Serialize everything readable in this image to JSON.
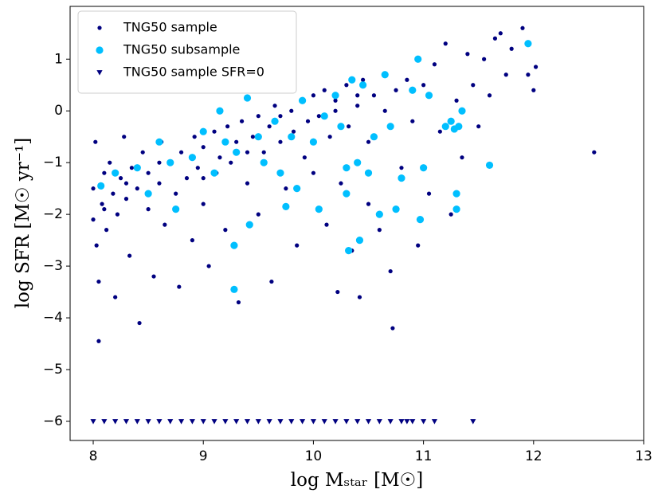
{
  "chart_data": {
    "type": "scatter",
    "xlabel": "log Mₛₜₐᵣ [M☉]",
    "ylabel": "log SFR [M☉ yr⁻¹]",
    "xlim": [
      7.79,
      13.0
    ],
    "ylim": [
      -6.37,
      2.02
    ],
    "xticks": [
      8,
      9,
      10,
      11,
      12,
      13
    ],
    "yticks": [
      {
        "value": -6,
        "label": "−6"
      },
      {
        "value": -5,
        "label": "−5"
      },
      {
        "value": -4,
        "label": "−4"
      },
      {
        "value": -3,
        "label": "−3"
      },
      {
        "value": -2,
        "label": "−2"
      },
      {
        "value": -1,
        "label": "−1"
      },
      0,
      1
    ],
    "legend": "upper left",
    "series": [
      {
        "name": "TNG50 sample",
        "color": "#000080",
        "marker": "circle",
        "x": [
          8.0,
          8.0,
          8.02,
          8.03,
          8.05,
          8.05,
          8.08,
          8.1,
          8.12,
          8.15,
          8.18,
          8.2,
          8.22,
          8.25,
          8.28,
          8.3,
          8.33,
          8.35,
          8.4,
          8.42,
          8.45,
          8.5,
          8.5,
          8.55,
          8.6,
          8.62,
          8.65,
          8.7,
          8.75,
          8.78,
          8.8,
          8.85,
          8.9,
          8.92,
          8.95,
          9.0,
          9.0,
          9.05,
          9.1,
          9.12,
          9.15,
          9.2,
          9.22,
          9.25,
          9.3,
          9.32,
          9.35,
          9.4,
          9.45,
          9.5,
          9.5,
          9.55,
          9.6,
          9.62,
          9.65,
          9.7,
          9.75,
          9.8,
          9.82,
          9.85,
          9.9,
          9.92,
          9.95,
          10.0,
          10.0,
          10.05,
          10.1,
          10.12,
          10.15,
          10.2,
          10.22,
          10.25,
          10.3,
          10.32,
          10.35,
          10.4,
          10.42,
          10.45,
          10.5,
          10.5,
          10.55,
          10.6,
          10.65,
          10.7,
          10.72,
          10.75,
          10.8,
          10.85,
          10.9,
          10.95,
          11.0,
          11.05,
          11.1,
          11.15,
          11.2,
          11.25,
          11.3,
          11.35,
          11.4,
          11.45,
          11.5,
          11.55,
          11.6,
          11.65,
          11.7,
          11.75,
          11.8,
          11.9,
          11.95,
          12.0,
          12.02,
          12.55,
          8.1,
          8.3,
          8.6,
          9.0,
          9.4,
          9.7,
          10.2,
          10.4
        ],
        "values": [
          -2.1,
          -1.5,
          -0.6,
          -2.6,
          -4.45,
          -3.3,
          -1.8,
          -1.2,
          -2.3,
          -1.0,
          -1.6,
          -3.6,
          -2.0,
          -1.3,
          -0.5,
          -1.7,
          -2.8,
          -1.1,
          -1.5,
          -4.1,
          -0.8,
          -1.9,
          -1.2,
          -3.2,
          -1.4,
          -0.6,
          -2.2,
          -1.0,
          -1.6,
          -3.4,
          -0.8,
          -1.3,
          -2.5,
          -0.5,
          -1.1,
          -0.7,
          -1.8,
          -3.0,
          -0.4,
          -1.2,
          -0.9,
          -2.3,
          -0.3,
          -1.0,
          -0.6,
          -3.7,
          -0.2,
          -1.4,
          -0.5,
          -0.1,
          -2.0,
          -0.8,
          -0.3,
          -3.3,
          0.1,
          -0.6,
          -1.5,
          0.0,
          -0.4,
          -2.6,
          0.2,
          -0.9,
          -0.2,
          0.3,
          -1.2,
          -0.1,
          0.4,
          -2.2,
          -0.5,
          0.2,
          -3.5,
          -1.4,
          0.5,
          -0.3,
          -2.7,
          0.1,
          -3.6,
          0.6,
          -0.6,
          -1.8,
          0.3,
          -2.3,
          0.0,
          -3.1,
          -4.2,
          0.4,
          -1.1,
          0.6,
          -0.2,
          -2.6,
          0.5,
          -1.6,
          0.9,
          -0.4,
          1.3,
          -2.0,
          0.2,
          -0.9,
          1.1,
          0.5,
          -0.3,
          1.0,
          0.3,
          1.4,
          1.5,
          0.7,
          1.2,
          1.6,
          0.7,
          0.4,
          0.85,
          -0.8,
          -1.9,
          -1.4,
          -1.0,
          -1.3,
          -0.8,
          -0.1,
          0.0,
          0.3
        ]
      },
      {
        "name": "TNG50 subsample",
        "color": "#00bfff",
        "marker": "big-circle",
        "x": [
          8.07,
          8.2,
          8.4,
          8.5,
          8.6,
          8.7,
          8.75,
          8.9,
          9.0,
          9.1,
          9.15,
          9.2,
          9.28,
          9.28,
          9.3,
          9.4,
          9.42,
          9.5,
          9.55,
          9.65,
          9.7,
          9.75,
          9.8,
          9.85,
          9.9,
          10.0,
          10.05,
          10.1,
          10.2,
          10.25,
          10.3,
          10.32,
          10.3,
          10.35,
          10.4,
          10.42,
          10.45,
          10.5,
          10.55,
          10.6,
          10.65,
          10.7,
          10.75,
          10.8,
          10.9,
          10.95,
          10.97,
          11.0,
          11.05,
          11.2,
          11.28,
          11.3,
          11.32,
          11.35,
          11.6,
          11.95,
          11.25,
          11.3
        ],
        "values": [
          -1.45,
          -1.2,
          -1.1,
          -1.6,
          -0.6,
          -1.0,
          -1.9,
          -0.9,
          -0.4,
          -1.2,
          0.0,
          -0.6,
          -2.6,
          -3.45,
          -0.8,
          0.25,
          -2.2,
          -0.5,
          -1.0,
          -0.2,
          -1.2,
          -1.85,
          -0.5,
          -1.5,
          0.2,
          -0.6,
          -1.9,
          -0.1,
          0.3,
          -0.3,
          -1.1,
          -2.7,
          -1.6,
          0.6,
          -1.0,
          -2.5,
          0.5,
          -1.2,
          -0.5,
          -2.0,
          0.7,
          -0.3,
          -1.9,
          -1.3,
          0.4,
          1.0,
          -2.1,
          -1.1,
          0.3,
          -0.3,
          -0.35,
          -1.6,
          -0.3,
          0.0,
          -1.05,
          1.3,
          -0.2,
          -1.9
        ]
      },
      {
        "name": "TNG50 sample SFR=0",
        "color": "#000080",
        "marker": "triangle-down",
        "x": [
          8.0,
          8.1,
          8.2,
          8.3,
          8.4,
          8.5,
          8.6,
          8.7,
          8.8,
          8.9,
          9.0,
          9.1,
          9.2,
          9.3,
          9.4,
          9.5,
          9.6,
          9.7,
          9.8,
          9.9,
          10.0,
          10.1,
          10.2,
          10.3,
          10.4,
          10.5,
          10.6,
          10.7,
          10.8,
          10.85,
          10.9,
          11.0,
          11.1,
          11.45
        ],
        "values": [
          -6,
          -6,
          -6,
          -6,
          -6,
          -6,
          -6,
          -6,
          -6,
          -6,
          -6,
          -6,
          -6,
          -6,
          -6,
          -6,
          -6,
          -6,
          -6,
          -6,
          -6,
          -6,
          -6,
          -6,
          -6,
          -6,
          -6,
          -6,
          -6,
          -6,
          -6,
          -6,
          -6,
          -6
        ]
      }
    ]
  }
}
